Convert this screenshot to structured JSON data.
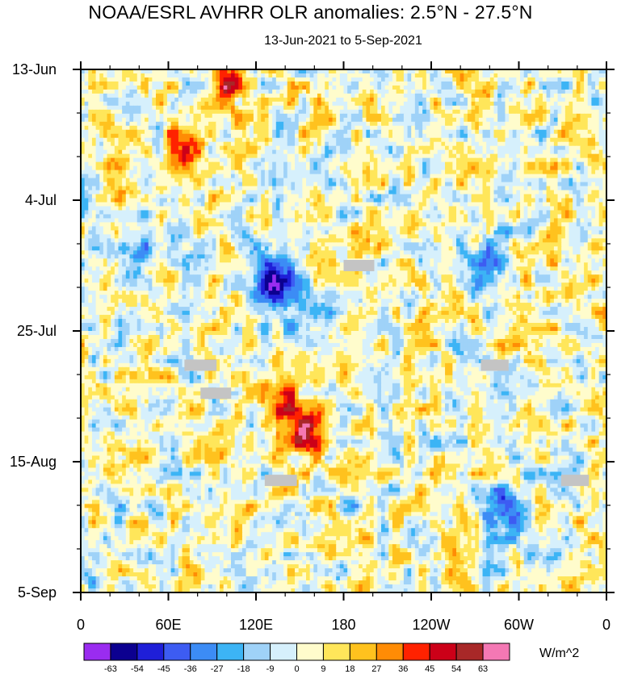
{
  "chart_data": {
    "type": "heatmap",
    "title": "NOAA/ESRL AVHRR OLR anomalies: 2.5°N - 27.5°N",
    "subtitle": "13-Jun-2021 to 5-Sep-2021",
    "xlabel": "",
    "ylabel": "",
    "x_tick_labels": [
      "0",
      "60E",
      "120E",
      "180",
      "120W",
      "60W",
      "0"
    ],
    "x_tick_longitudes": [
      0,
      60,
      120,
      180,
      240,
      300,
      360
    ],
    "xlim": [
      0,
      360
    ],
    "y_tick_labels": [
      "13-Jun",
      "4-Jul",
      "25-Jul",
      "15-Aug",
      "5-Sep"
    ],
    "y_tick_days": [
      0,
      21,
      42,
      63,
      84
    ],
    "ylim_days": [
      0,
      84
    ],
    "colorbar": {
      "units": "W/m^2",
      "levels": [
        "-63",
        "-54",
        "-45",
        "-36",
        "-27",
        "-18",
        "-9",
        "0",
        "9",
        "18",
        "27",
        "36",
        "45",
        "54",
        "63"
      ],
      "colors": [
        "#9a2cf0",
        "#0c0090",
        "#1f1fd8",
        "#3d5cf2",
        "#3c8cf5",
        "#3cb4f5",
        "#9fd2f8",
        "#d6f0fc",
        "#fffccc",
        "#ffe65a",
        "#ffc21e",
        "#ff8c05",
        "#ff2200",
        "#cc0018",
        "#a82828",
        "#f478b4"
      ]
    },
    "missing_data_color": "#c4c4c4",
    "approx_anomaly_centers": [
      {
        "lon": 130,
        "day": 33,
        "value": -50
      },
      {
        "lon": 148,
        "day": 37,
        "value": -45
      },
      {
        "lon": 40,
        "day": 30,
        "value": -40
      },
      {
        "lon": 140,
        "day": 55,
        "value": 40
      },
      {
        "lon": 160,
        "day": 58,
        "value": 45
      },
      {
        "lon": 70,
        "day": 12,
        "value": 40
      },
      {
        "lon": 100,
        "day": 3,
        "value": 40
      },
      {
        "lon": 280,
        "day": 32,
        "value": -35
      },
      {
        "lon": 290,
        "day": 70,
        "value": -40
      }
    ]
  }
}
